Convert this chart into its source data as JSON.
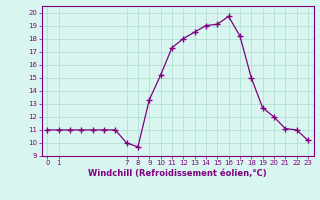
{
  "x": [
    0,
    1,
    2,
    3,
    4,
    5,
    6,
    7,
    8,
    9,
    10,
    11,
    12,
    13,
    14,
    15,
    16,
    17,
    18,
    19,
    20,
    21,
    22,
    23
  ],
  "y": [
    11.0,
    11.0,
    11.0,
    11.0,
    11.0,
    11.0,
    11.0,
    10.0,
    9.7,
    13.3,
    15.2,
    17.3,
    18.0,
    18.5,
    19.0,
    19.1,
    19.7,
    18.2,
    15.0,
    12.7,
    12.0,
    11.1,
    11.0,
    10.2
  ],
  "line_color": "#800080",
  "marker": "+",
  "marker_size": 4,
  "marker_color": "#800080",
  "bg_color": "#d8f5f0",
  "grid_color": "#aaddcc",
  "xlabel": "Windchill (Refroidissement éolien,°C)",
  "ylim": [
    9,
    20.5
  ],
  "xlim": [
    -0.5,
    23.5
  ],
  "yticks": [
    9,
    10,
    11,
    12,
    13,
    14,
    15,
    16,
    17,
    18,
    19,
    20
  ],
  "xticks": [
    0,
    1,
    7,
    8,
    9,
    10,
    11,
    12,
    13,
    14,
    15,
    16,
    17,
    18,
    19,
    20,
    21,
    22,
    23
  ],
  "tick_fontsize": 5.0,
  "xlabel_fontsize": 6.0,
  "line_width": 0.9
}
